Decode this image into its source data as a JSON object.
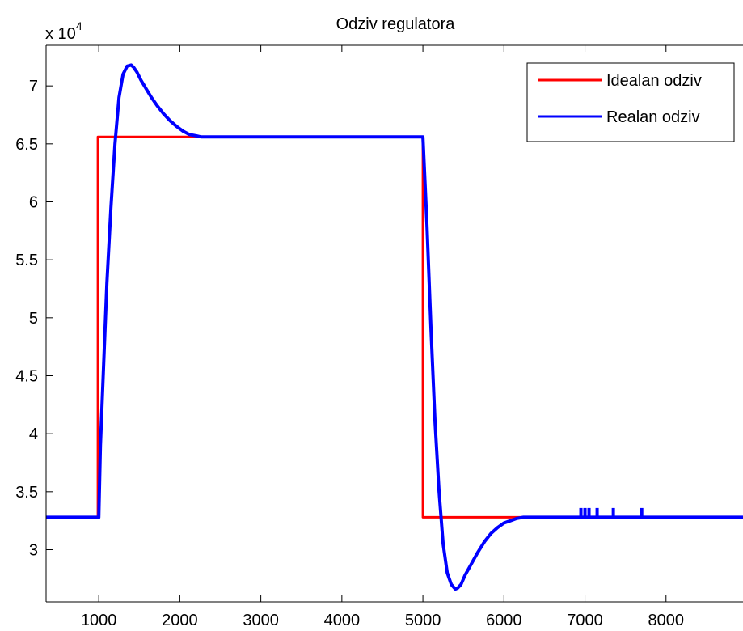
{
  "chart_data": {
    "type": "line",
    "title": "Odziv regulatora",
    "xlabel": "",
    "ylabel": "",
    "y_multiplier_label": {
      "prefix": "x 10",
      "exponent": "4"
    },
    "xlim": [
      350,
      8950
    ],
    "ylim": [
      2.55,
      7.35
    ],
    "xticks": [
      1000,
      2000,
      3000,
      4000,
      5000,
      6000,
      7000,
      8000
    ],
    "xtick_labels": [
      "1000",
      "2000",
      "3000",
      "4000",
      "5000",
      "6000",
      "7000",
      "8000"
    ],
    "yticks": [
      3,
      3.5,
      4,
      4.5,
      5,
      5.5,
      6,
      6.5,
      7
    ],
    "ytick_labels": [
      "3",
      "3.5",
      "4",
      "4.5",
      "5",
      "5.5",
      "6",
      "6.5",
      "7"
    ],
    "grid": false,
    "legend_position": "top-right",
    "series": [
      {
        "name": "Idealan odziv",
        "color": "#ff0000",
        "x": [
          350,
          990,
          990,
          5000,
          5000,
          8950
        ],
        "y": [
          3.28,
          3.28,
          6.56,
          6.56,
          3.28,
          3.28
        ]
      },
      {
        "name": "Realan odziv",
        "color": "#0000ff",
        "x": [
          350,
          1000,
          1020,
          1060,
          1100,
          1150,
          1200,
          1250,
          1300,
          1350,
          1400,
          1430,
          1470,
          1520,
          1580,
          1650,
          1720,
          1800,
          1880,
          1960,
          2040,
          2120,
          2200,
          2260,
          4990,
          5000,
          5050,
          5100,
          5150,
          5200,
          5250,
          5300,
          5350,
          5400,
          5430,
          5470,
          5520,
          5600,
          5680,
          5760,
          5840,
          5920,
          6000,
          6080,
          6160,
          6240,
          6320,
          8950
        ],
        "y": [
          3.28,
          3.28,
          3.9,
          4.6,
          5.3,
          5.95,
          6.5,
          6.9,
          7.1,
          7.17,
          7.18,
          7.16,
          7.12,
          7.05,
          6.98,
          6.9,
          6.83,
          6.76,
          6.7,
          6.65,
          6.61,
          6.58,
          6.57,
          6.56,
          6.56,
          6.56,
          5.8,
          4.9,
          4.1,
          3.5,
          3.05,
          2.8,
          2.7,
          2.66,
          2.67,
          2.7,
          2.78,
          2.88,
          2.98,
          3.07,
          3.14,
          3.19,
          3.23,
          3.25,
          3.27,
          3.28,
          3.28,
          3.28
        ]
      }
    ],
    "blips": [
      {
        "x": 6950,
        "y": 3.36
      },
      {
        "x": 7000,
        "y": 3.36
      },
      {
        "x": 7050,
        "y": 3.36
      },
      {
        "x": 7150,
        "y": 3.36
      },
      {
        "x": 7350,
        "y": 3.36
      },
      {
        "x": 7700,
        "y": 3.36
      }
    ]
  }
}
